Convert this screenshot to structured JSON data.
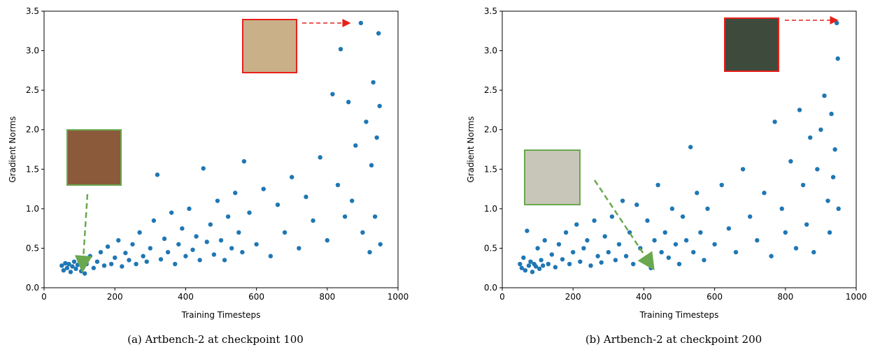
{
  "chart_data": [
    {
      "type": "scatter",
      "caption": "(a) Artbench-2 at checkpoint 100",
      "x_label": "Training Timesteps",
      "y_label": "Gradient Norms",
      "xlim": [
        0,
        1000
      ],
      "xticks": [
        0,
        200,
        400,
        600,
        800,
        1000
      ],
      "ylim": [
        0,
        3.5
      ],
      "yticks": [
        {
          "value": 0,
          "label": "0.0"
        },
        0.5,
        {
          "value": 1,
          "label": "1.0"
        },
        1.5,
        {
          "value": 2,
          "label": "2.0"
        },
        2.5,
        {
          "value": 3,
          "label": "3.0"
        },
        3.5
      ],
      "color": "#1f77b4",
      "x": [
        50,
        55,
        60,
        65,
        70,
        75,
        80,
        85,
        90,
        95,
        100,
        105,
        110,
        115,
        120,
        130,
        140,
        150,
        160,
        170,
        180,
        190,
        200,
        210,
        220,
        230,
        240,
        250,
        260,
        270,
        280,
        290,
        300,
        310,
        320,
        330,
        340,
        350,
        360,
        370,
        380,
        390,
        400,
        410,
        420,
        430,
        440,
        450,
        460,
        470,
        480,
        490,
        500,
        510,
        520,
        530,
        540,
        550,
        560,
        565,
        580,
        600,
        620,
        640,
        660,
        680,
        700,
        720,
        740,
        760,
        780,
        800,
        815,
        830,
        838,
        850,
        860,
        870,
        880,
        895,
        900,
        910,
        920,
        925,
        930,
        935,
        940,
        945,
        948,
        950
      ],
      "values": [
        0.28,
        0.22,
        0.31,
        0.25,
        0.3,
        0.2,
        0.27,
        0.33,
        0.24,
        0.29,
        0.35,
        0.21,
        0.26,
        0.18,
        0.3,
        0.4,
        0.25,
        0.33,
        0.45,
        0.28,
        0.52,
        0.3,
        0.38,
        0.6,
        0.27,
        0.44,
        0.35,
        0.55,
        0.3,
        0.7,
        0.4,
        0.33,
        0.5,
        0.85,
        1.43,
        0.36,
        0.62,
        0.45,
        0.95,
        0.3,
        0.55,
        0.75,
        0.4,
        1.0,
        0.48,
        0.65,
        0.35,
        1.51,
        0.58,
        0.8,
        0.42,
        1.1,
        0.6,
        0.35,
        0.9,
        0.5,
        1.2,
        0.7,
        0.45,
        1.6,
        0.95,
        0.55,
        1.25,
        0.4,
        1.05,
        0.7,
        1.4,
        0.5,
        1.15,
        0.85,
        1.65,
        0.6,
        2.45,
        1.3,
        3.02,
        0.9,
        2.35,
        1.1,
        1.8,
        3.35,
        0.7,
        2.1,
        0.45,
        1.55,
        2.6,
        0.9,
        1.9,
        3.22,
        2.3,
        0.55
      ]
    },
    {
      "type": "scatter",
      "caption": "(b) Artbench-2 at checkpoint 200",
      "x_label": "Training Timesteps",
      "y_label": "Gradient Norms",
      "xlim": [
        0,
        1000
      ],
      "xticks": [
        0,
        200,
        400,
        600,
        800,
        1000
      ],
      "ylim": [
        0,
        3.5
      ],
      "yticks": [
        {
          "value": 0,
          "label": "0.0"
        },
        0.5,
        {
          "value": 1,
          "label": "1.0"
        },
        1.5,
        {
          "value": 2,
          "label": "2.0"
        },
        2.5,
        {
          "value": 3,
          "label": "3.0"
        },
        3.5
      ],
      "color": "#1f77b4",
      "x": [
        50,
        55,
        60,
        65,
        70,
        75,
        80,
        85,
        90,
        95,
        100,
        105,
        110,
        115,
        120,
        130,
        140,
        150,
        160,
        170,
        180,
        190,
        200,
        210,
        220,
        230,
        240,
        250,
        260,
        270,
        280,
        290,
        300,
        310,
        320,
        330,
        340,
        350,
        360,
        370,
        380,
        390,
        400,
        410,
        420,
        430,
        440,
        450,
        460,
        470,
        480,
        490,
        500,
        510,
        520,
        532,
        540,
        550,
        560,
        570,
        580,
        600,
        620,
        640,
        660,
        680,
        700,
        720,
        740,
        760,
        770,
        790,
        800,
        815,
        830,
        840,
        850,
        860,
        870,
        880,
        890,
        900,
        910,
        920,
        925,
        930,
        935,
        940,
        945,
        948,
        950
      ],
      "values": [
        0.3,
        0.25,
        0.38,
        0.22,
        0.72,
        0.28,
        0.33,
        0.2,
        0.3,
        0.27,
        0.5,
        0.24,
        0.35,
        0.28,
        0.6,
        0.3,
        0.42,
        0.26,
        0.55,
        0.36,
        0.7,
        0.3,
        0.45,
        0.8,
        0.33,
        0.5,
        0.6,
        0.28,
        0.85,
        0.4,
        0.32,
        0.65,
        0.45,
        0.9,
        0.35,
        0.55,
        1.1,
        0.4,
        0.7,
        0.3,
        1.05,
        0.5,
        0.35,
        0.85,
        0.25,
        0.6,
        1.3,
        0.45,
        0.7,
        0.38,
        1.0,
        0.55,
        0.3,
        0.9,
        0.6,
        1.78,
        0.45,
        1.2,
        0.7,
        0.35,
        1.0,
        0.55,
        1.3,
        0.75,
        0.45,
        1.5,
        0.9,
        0.6,
        1.2,
        0.4,
        2.1,
        1.0,
        0.7,
        1.6,
        0.5,
        2.25,
        1.3,
        0.8,
        1.9,
        0.45,
        1.5,
        2.0,
        2.43,
        1.1,
        0.7,
        2.2,
        1.4,
        1.75,
        3.35,
        2.9,
        1.0
      ]
    }
  ]
}
